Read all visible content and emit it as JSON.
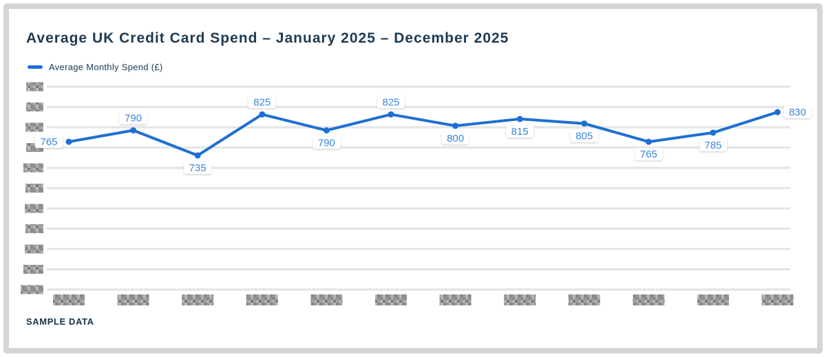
{
  "chart": {
    "title": "Average UK Credit Card Spend – January 2025 – December 2025",
    "legend_label": "Average Monthly Spend (£)",
    "footer": "SAMPLE DATA",
    "colors": {
      "line": "#1e6fd2",
      "marker": "#1e6fd2",
      "data_label_text": "#3b86dc",
      "data_label_bg": "#ffffff",
      "title_text": "#1d3b53",
      "gridline": "#e4e6e6",
      "frame": "#d2d6d6",
      "redacted_tick": "#9b9b9b",
      "background": "#ffffff"
    }
  },
  "chart_data": {
    "type": "line",
    "title": "Average UK Credit Card Spend – January 2025 – December 2025",
    "categories": [
      "Jan 2025",
      "Feb 2025",
      "Mar 2025",
      "Apr 2025",
      "May 2025",
      "Jun 2025",
      "Jul 2025",
      "Aug 2025",
      "Sep 2025",
      "Oct 2025",
      "Nov 2025",
      "Dec 2025"
    ],
    "series": [
      {
        "name": "Average Monthly Spend (£)",
        "values": [
          765,
          790,
          735,
          825,
          790,
          825,
          800,
          815,
          805,
          765,
          785,
          830
        ]
      }
    ],
    "data_labels_shown": [
      765,
      790,
      735,
      825,
      790,
      825,
      800,
      815,
      805,
      765,
      785,
      830
    ],
    "x_tick_labels_rendering": "pixelated/illegible grey boxes",
    "y_tick_labels_rendering": "pixelated/illegible grey boxes",
    "gridlines": "horizontal, 11 lines",
    "legend_position": "top-left",
    "ylim_visible_points": [
      735,
      830
    ]
  }
}
